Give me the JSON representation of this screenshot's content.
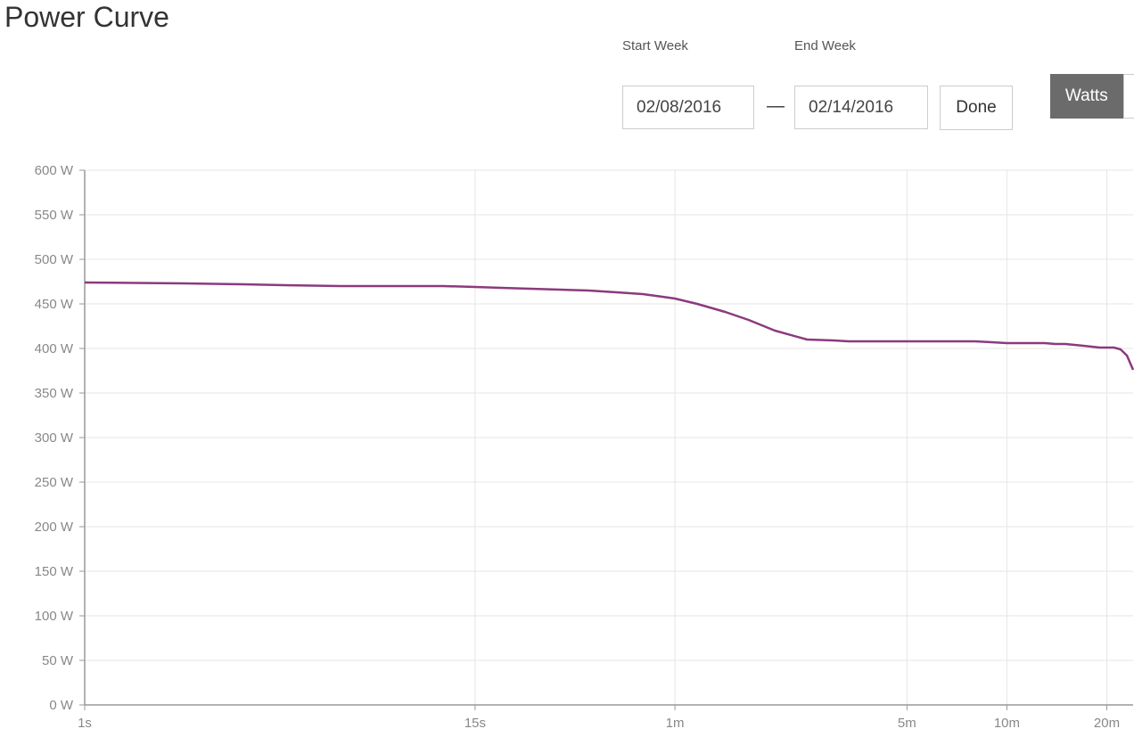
{
  "title": "Power Curve",
  "controls": {
    "start_label": "Start Week",
    "start_value": "02/08/2016",
    "end_label": "End Week",
    "end_value": "02/14/2016",
    "separator": "—",
    "done_label": "Done",
    "units_active": "Watts"
  },
  "colors": {
    "line": "#8b3a7e",
    "grid": "#e6e6e6",
    "axis": "#999999",
    "tick_text": "#888888"
  },
  "chart_data": {
    "type": "line",
    "x_scale": "log",
    "x_unit": "seconds",
    "xlim": [
      1,
      1440
    ],
    "ylim": [
      0,
      600
    ],
    "grid": true,
    "y_ticks": [
      0,
      50,
      100,
      150,
      200,
      250,
      300,
      350,
      400,
      450,
      500,
      550,
      600
    ],
    "y_tick_labels": [
      "0 W",
      "50 W",
      "100 W",
      "150 W",
      "200 W",
      "250 W",
      "300 W",
      "350 W",
      "400 W",
      "450 W",
      "500 W",
      "550 W",
      "600 W"
    ],
    "x_ticks": [
      1,
      15,
      60,
      300,
      600,
      1200
    ],
    "x_tick_labels": [
      "1s",
      "15s",
      "1m",
      "5m",
      "10m",
      "20m"
    ],
    "series": [
      {
        "x": [
          1,
          2,
          3,
          4,
          6,
          8,
          10,
          12,
          15,
          18,
          22,
          27,
          33,
          40,
          48,
          55,
          60,
          70,
          85,
          100,
          120,
          150,
          180,
          200,
          220,
          240,
          270,
          300,
          360,
          420,
          480,
          540,
          600,
          660,
          720,
          780,
          840,
          900,
          960,
          1020,
          1080,
          1140,
          1200,
          1260,
          1320,
          1380,
          1440
        ],
        "y": [
          474,
          473,
          472,
          471,
          470,
          470,
          470,
          470,
          469,
          468,
          467,
          466,
          465,
          463,
          461,
          458,
          456,
          450,
          441,
          432,
          420,
          410,
          409,
          408,
          408,
          408,
          408,
          408,
          408,
          408,
          408,
          407,
          406,
          406,
          406,
          406,
          405,
          405,
          404,
          403,
          402,
          401,
          401,
          401,
          399,
          392,
          376
        ]
      }
    ]
  }
}
